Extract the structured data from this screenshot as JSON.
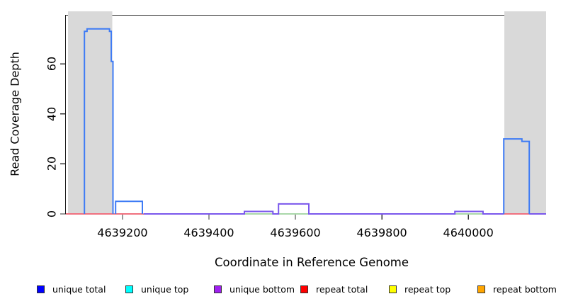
{
  "chart_data": {
    "type": "line",
    "step": true,
    "title": "",
    "xlabel": "Coordinate in Reference Genome",
    "ylabel": "Read Coverage Depth",
    "xlim": [
      4639069,
      4640180
    ],
    "ylim": [
      0,
      79.6
    ],
    "x_ticks": [
      4639200,
      4639400,
      4639600,
      4639800,
      4640000
    ],
    "y_ticks": [
      0,
      20,
      40,
      60
    ],
    "background": "#ffffff",
    "shaded_regions": [
      {
        "x_start": 4639074,
        "x_end": 4639176,
        "color": "#d9d9d9"
      },
      {
        "x_start": 4640083,
        "x_end": 4640180,
        "color": "#d9d9d9"
      }
    ],
    "series": [
      {
        "name": "unique total",
        "legend_color": "#0000ff",
        "plot_color": "#3e7bf5",
        "paths": [
          [
            [
              4639112,
              0
            ],
            [
              4639112,
              73
            ],
            [
              4639118,
              73
            ],
            [
              4639118,
              74
            ],
            [
              4639170,
              74
            ],
            [
              4639170,
              73
            ],
            [
              4639174,
              73
            ],
            [
              4639174,
              61
            ],
            [
              4639178,
              61
            ],
            [
              4639178,
              0
            ]
          ],
          [
            [
              4639184,
              0
            ],
            [
              4639184,
              5
            ],
            [
              4639246,
              5
            ],
            [
              4639246,
              0
            ]
          ],
          [
            [
              4640082,
              0
            ],
            [
              4640082,
              30
            ],
            [
              4640124,
              30
            ],
            [
              4640124,
              29
            ],
            [
              4640141,
              29
            ],
            [
              4640141,
              0
            ]
          ]
        ]
      },
      {
        "name": "unique top",
        "legend_color": "#00ffff",
        "plot_color": "#a9d7a9",
        "paths": [
          [
            [
              4639482,
              0
            ],
            [
              4639548,
              0
            ]
          ],
          [
            [
              4639561,
              0
            ],
            [
              4639631,
              0
            ]
          ],
          [
            [
              4639969,
              0
            ],
            [
              4640034,
              0
            ]
          ]
        ]
      },
      {
        "name": "unique bottom",
        "legend_color": "#a020f0",
        "plot_color": "#7a57ec",
        "paths": [
          [
            [
              4639249,
              0
            ],
            [
              4639482,
              0
            ],
            [
              4639482,
              1
            ],
            [
              4639548,
              1
            ],
            [
              4639548,
              0
            ],
            [
              4639561,
              0
            ],
            [
              4639561,
              4
            ],
            [
              4639631,
              4
            ],
            [
              4639631,
              0
            ],
            [
              4639969,
              0
            ],
            [
              4639969,
              1
            ],
            [
              4640034,
              1
            ],
            [
              4640034,
              0
            ],
            [
              4640180,
              0
            ]
          ]
        ]
      },
      {
        "name": "repeat total",
        "legend_color": "#ff0000",
        "plot_color": "#f0707f",
        "paths": [
          [
            [
              4639069,
              0
            ],
            [
              4639249,
              0
            ]
          ],
          [
            [
              4640082,
              0
            ],
            [
              4640141,
              0
            ]
          ]
        ]
      },
      {
        "name": "repeat top",
        "legend_color": "#ffff00",
        "plot_color": "#ffff00",
        "paths": []
      },
      {
        "name": "repeat bottom",
        "legend_color": "#ffa500",
        "plot_color": "#ffa500",
        "paths": []
      }
    ]
  },
  "legend": {
    "items": [
      {
        "label": "unique total",
        "color": "#0000ff"
      },
      {
        "label": "unique top",
        "color": "#00ffff"
      },
      {
        "label": "unique bottom",
        "color": "#a020f0"
      },
      {
        "label": "repeat total",
        "color": "#ff0000"
      },
      {
        "label": "repeat top",
        "color": "#ffff00"
      },
      {
        "label": "repeat bottom",
        "color": "#ffa500"
      }
    ]
  }
}
